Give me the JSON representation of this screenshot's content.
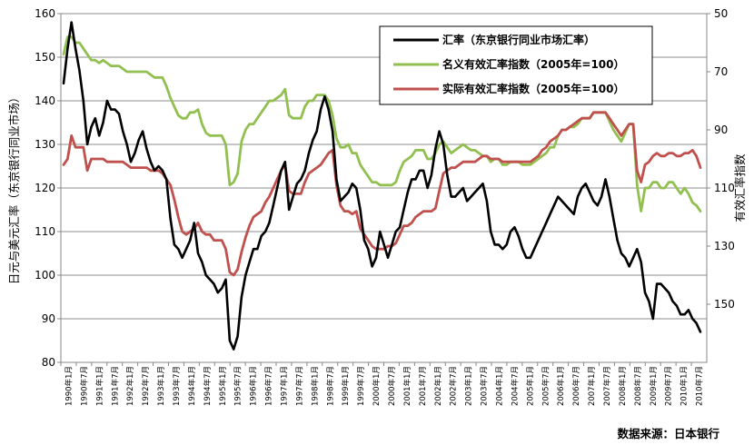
{
  "chart_data": {
    "type": "line",
    "ylabel_left": "日元与美元汇率（东京银行同业市场）",
    "ylabel_right": "有效汇率指数",
    "source": "数据来源：日本银行",
    "left_axis": {
      "min": 80,
      "max": 160,
      "ticks": [
        80,
        90,
        100,
        110,
        120,
        130,
        140,
        150,
        160
      ]
    },
    "right_axis": {
      "min": 50,
      "max": 170,
      "inverted": true,
      "ticks": [
        50,
        70,
        90,
        110,
        130,
        150
      ]
    },
    "x_labels": [
      "1990年1月",
      "1990年7月",
      "1991年1月",
      "1991年7月",
      "1992年1月",
      "1992年7月",
      "1993年1月",
      "1993年7月",
      "1994年1月",
      "1994年7月",
      "1995年1月",
      "1995年7月",
      "1996年1月",
      "1996年7月",
      "1997年1月",
      "1997年7月",
      "1998年1月",
      "1998年7月",
      "1999年1月",
      "1999年7月",
      "2000年1月",
      "2000年7月",
      "2001年1月",
      "2001年7月",
      "2002年1月",
      "2002年7月",
      "2003年1月",
      "2003年7月",
      "2004年1月",
      "2004年7月",
      "2005年1月",
      "2005年7月",
      "2006年1月",
      "2006年7月",
      "2007年1月",
      "2007年7月",
      "2008年1月",
      "2008年7月",
      "2009年1月",
      "2009年7月",
      "2010年1月",
      "2010年7月"
    ],
    "legend_position": "top-right",
    "grid": "horizontal",
    "series": [
      {
        "name": "汇率（东京银行同业市场汇率）",
        "axis": "left",
        "color": "#000000",
        "values": [
          144,
          152,
          158,
          152,
          147,
          140,
          130,
          134,
          136,
          132,
          135,
          140,
          138,
          138,
          137,
          133,
          130,
          126,
          128,
          131,
          133,
          129,
          126,
          124,
          125,
          124,
          122,
          113,
          107,
          106,
          104,
          106,
          108,
          112,
          105,
          103,
          100,
          99,
          98,
          96,
          97,
          99,
          85,
          83,
          86,
          95,
          100,
          103,
          106,
          106,
          109,
          110,
          112,
          116,
          120,
          124,
          126,
          115,
          118,
          121,
          122,
          124,
          128,
          131,
          133,
          138,
          141,
          138,
          133,
          122,
          117,
          118,
          119,
          121,
          120,
          115,
          108,
          106,
          102,
          104,
          110,
          107,
          104,
          107,
          110,
          111,
          115,
          119,
          122,
          122,
          124,
          124,
          120,
          123,
          129,
          133,
          130,
          123,
          118,
          118,
          119,
          120,
          117,
          118,
          119,
          120,
          121,
          117,
          110,
          107,
          107,
          106,
          107,
          110,
          111,
          109,
          106,
          104,
          104,
          106,
          108,
          110,
          112,
          114,
          116,
          118,
          117,
          116,
          115,
          114,
          118,
          120,
          121,
          119,
          117,
          116,
          118,
          122,
          118,
          113,
          108,
          105,
          104,
          102,
          104,
          106,
          103,
          96,
          94,
          90,
          98,
          98,
          97,
          96,
          94,
          93,
          91,
          91,
          92,
          90,
          89,
          87
        ]
      },
      {
        "name": "名义有效汇率指数（2005年=100）",
        "axis": "right",
        "color": "#92c050",
        "values": [
          64,
          58,
          58,
          60,
          60,
          62,
          64,
          66,
          66,
          67,
          66,
          67,
          68,
          68,
          68,
          69,
          70,
          70,
          70,
          70,
          70,
          70,
          71,
          72,
          72,
          72,
          75,
          79,
          82,
          85,
          86,
          86,
          84,
          84,
          83,
          88,
          91,
          92,
          92,
          92,
          92,
          95,
          109,
          108,
          105,
          94,
          90,
          88,
          88,
          86,
          84,
          82,
          80,
          80,
          79,
          78,
          76,
          85,
          86,
          86,
          86,
          82,
          80,
          80,
          78,
          78,
          78,
          80,
          85,
          93,
          96,
          96,
          95,
          98,
          98,
          102,
          104,
          106,
          108,
          108,
          109,
          109,
          109,
          109,
          108,
          104,
          101,
          100,
          99,
          97,
          97,
          97,
          100,
          100,
          98,
          95,
          94,
          96,
          98,
          97,
          96,
          95,
          96,
          97,
          97,
          98,
          99,
          99,
          101,
          100,
          100,
          102,
          102,
          101,
          101,
          101,
          102,
          102,
          102,
          101,
          100,
          99,
          98,
          96,
          96,
          92,
          90,
          90,
          89,
          89,
          88,
          86,
          86,
          86,
          84,
          84,
          84,
          84,
          87,
          90,
          92,
          94,
          91,
          88,
          88,
          109,
          118,
          110,
          110,
          108,
          108,
          110,
          110,
          108,
          108,
          110,
          112,
          110,
          112,
          115,
          116,
          118
        ]
      },
      {
        "name": "实际有效汇率指数（2005年=100）",
        "axis": "right",
        "color": "#c0504d",
        "values": [
          102,
          100,
          92,
          96,
          96,
          96,
          104,
          100,
          100,
          100,
          100,
          101,
          101,
          101,
          101,
          101,
          102,
          103,
          103,
          103,
          103,
          103,
          104,
          104,
          104,
          105,
          107,
          109,
          114,
          120,
          125,
          126,
          125,
          124,
          122,
          125,
          126,
          126,
          128,
          128,
          128,
          131,
          139,
          140,
          138,
          132,
          127,
          123,
          120,
          119,
          118,
          115,
          113,
          110,
          107,
          104,
          102,
          111,
          112,
          112,
          112,
          108,
          105,
          104,
          103,
          102,
          100,
          98,
          97,
          109,
          116,
          118,
          118,
          119,
          118,
          124,
          126,
          128,
          130,
          131,
          131,
          131,
          130,
          130,
          129,
          126,
          123,
          123,
          122,
          120,
          119,
          118,
          118,
          118,
          117,
          111,
          105,
          104,
          103,
          103,
          102,
          101,
          101,
          101,
          101,
          100,
          99,
          99,
          100,
          100,
          100,
          101,
          101,
          101,
          101,
          101,
          101,
          101,
          101,
          100,
          99,
          97,
          96,
          94,
          93,
          92,
          90,
          90,
          89,
          88,
          87,
          86,
          86,
          86,
          84,
          84,
          84,
          84,
          86,
          88,
          90,
          92,
          90,
          88,
          88,
          104,
          108,
          102,
          101,
          99,
          98,
          99,
          99,
          98,
          98,
          99,
          99,
          98,
          98,
          97,
          99,
          103
        ]
      }
    ]
  }
}
